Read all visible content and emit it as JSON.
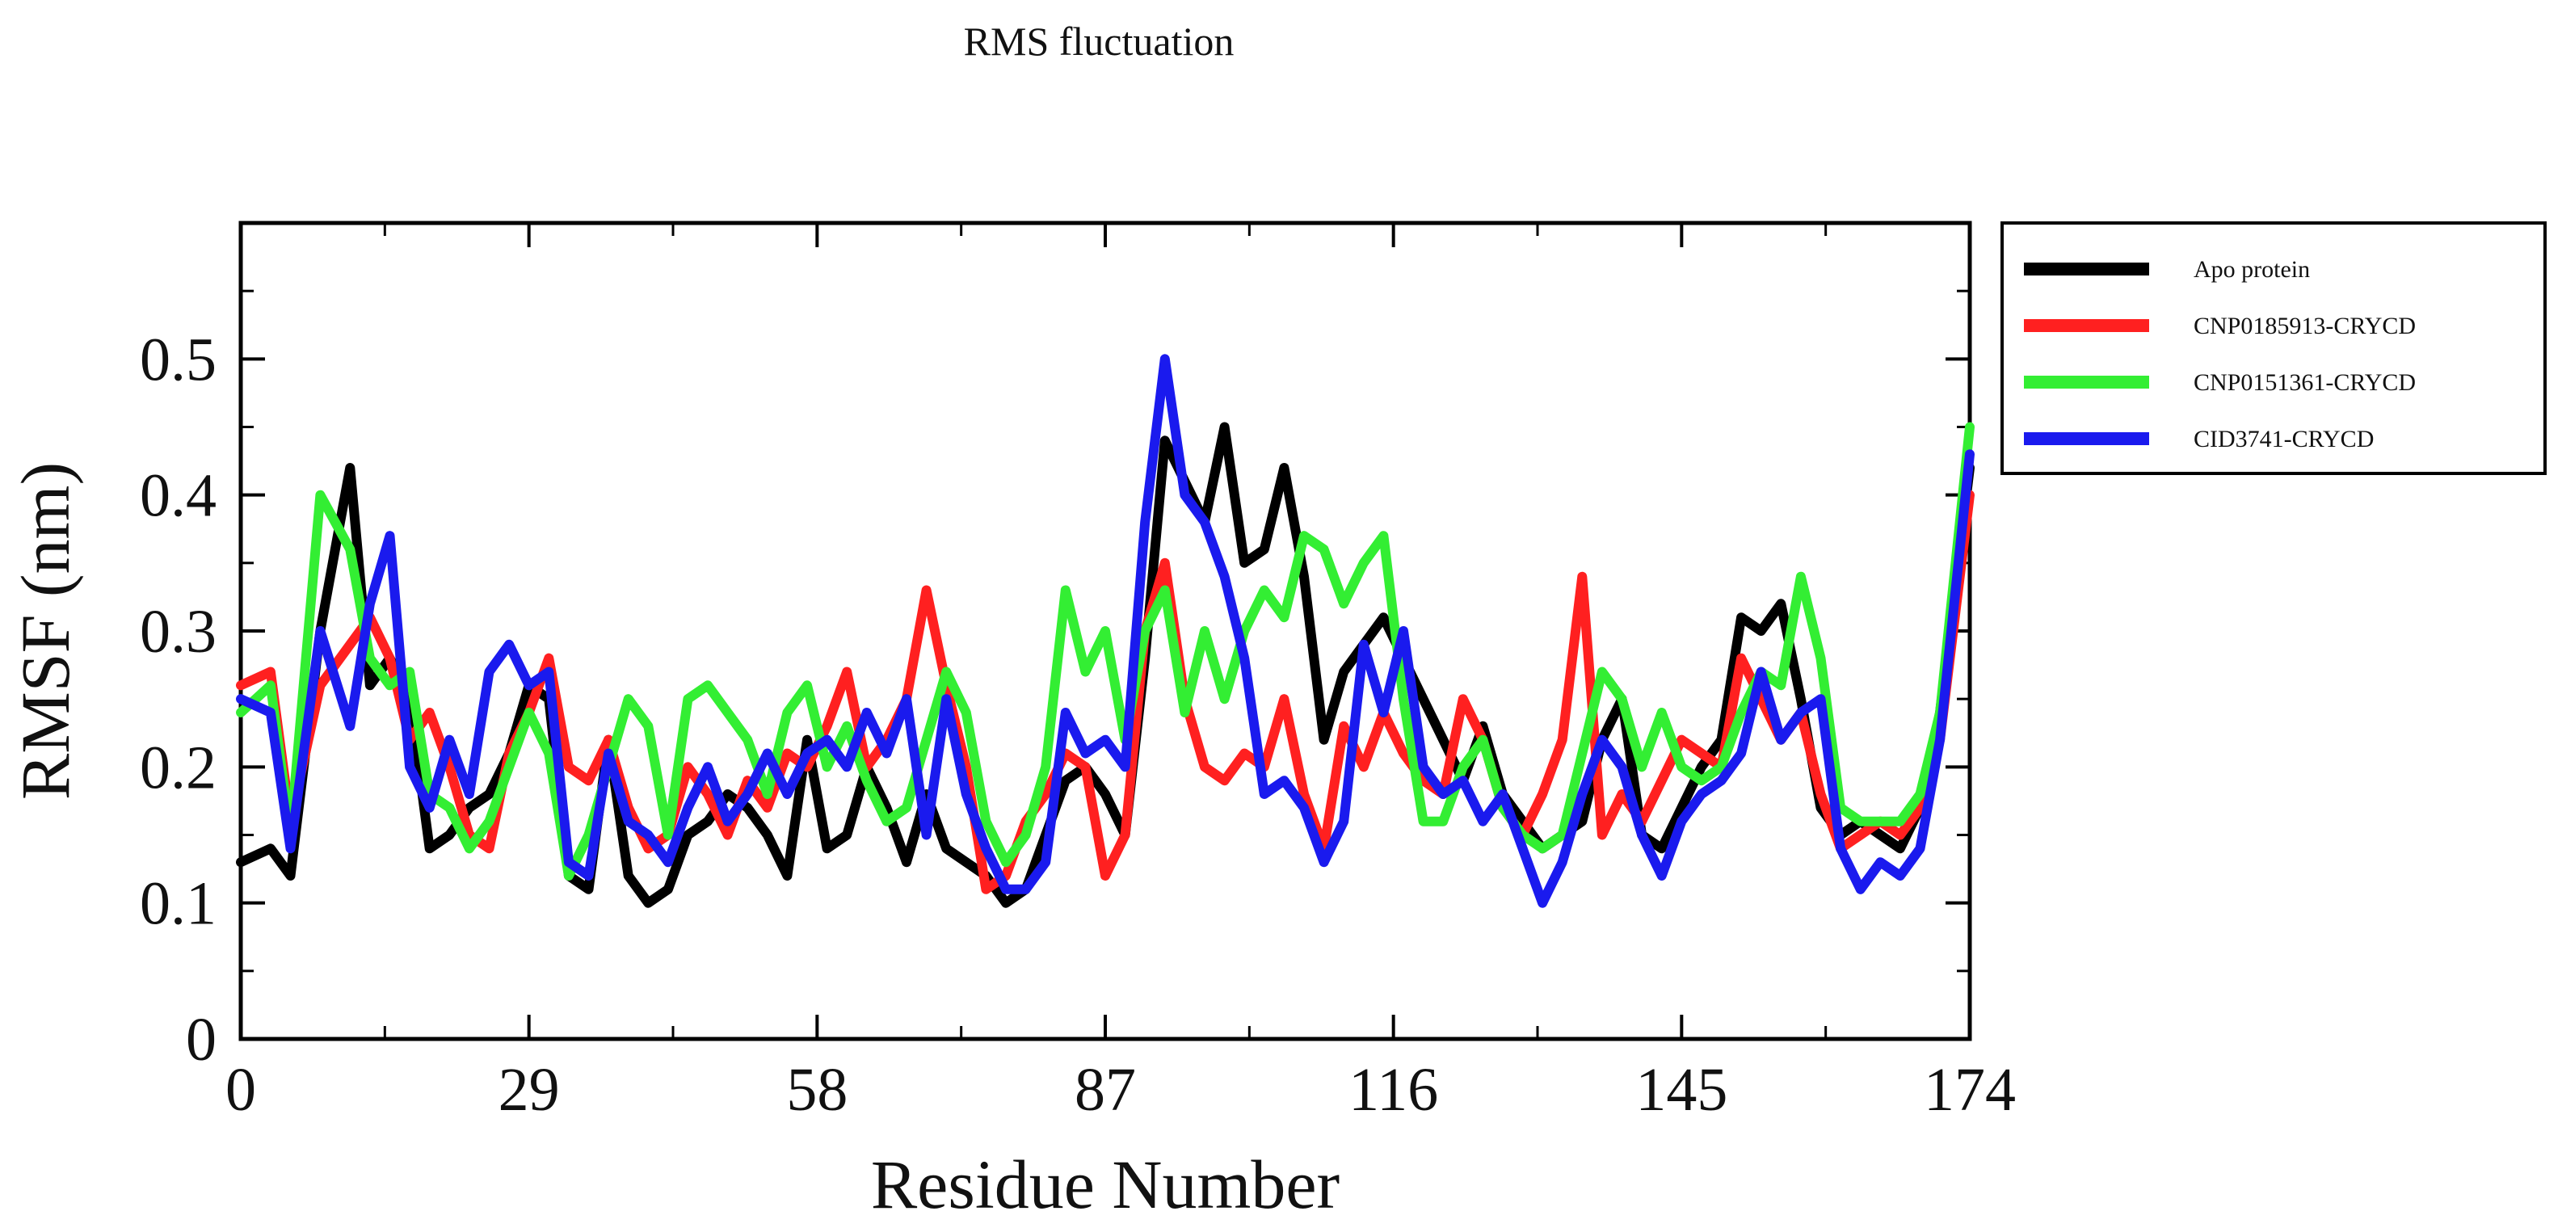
{
  "chart_data": {
    "type": "line",
    "title": "RMS fluctuation",
    "xlabel": "Residue Number",
    "ylabel": "RMSF (nm)",
    "xlim": [
      0,
      174
    ],
    "ylim": [
      0,
      0.6
    ],
    "x_ticks": [
      "0",
      "29",
      "58",
      "87",
      "116",
      "145",
      "174"
    ],
    "y_ticks": [
      "0",
      "0.1",
      "0.2",
      "0.3",
      "0.4",
      "0.5"
    ],
    "legend_position": "outside-right",
    "series": [
      {
        "name": "Apo protein",
        "color": "#000000",
        "x": [
          0,
          3,
          5,
          8,
          11,
          13,
          15,
          17,
          19,
          21,
          23,
          25,
          27,
          29,
          31,
          33,
          35,
          37,
          39,
          41,
          43,
          45,
          47,
          49,
          51,
          53,
          55,
          57,
          59,
          61,
          63,
          65,
          67,
          69,
          71,
          73,
          75,
          77,
          79,
          81,
          83,
          85,
          87,
          89,
          91,
          93,
          95,
          97,
          99,
          101,
          103,
          105,
          107,
          109,
          111,
          113,
          115,
          117,
          119,
          121,
          123,
          125,
          127,
          129,
          131,
          133,
          135,
          137,
          139,
          141,
          143,
          145,
          147,
          149,
          151,
          153,
          155,
          157,
          159,
          161,
          163,
          165,
          167,
          169,
          171,
          174
        ],
        "values": [
          0.13,
          0.14,
          0.12,
          0.3,
          0.42,
          0.26,
          0.28,
          0.25,
          0.14,
          0.15,
          0.17,
          0.18,
          0.21,
          0.26,
          0.25,
          0.12,
          0.11,
          0.22,
          0.12,
          0.1,
          0.11,
          0.15,
          0.16,
          0.18,
          0.17,
          0.15,
          0.12,
          0.22,
          0.14,
          0.15,
          0.2,
          0.17,
          0.13,
          0.18,
          0.14,
          0.13,
          0.12,
          0.1,
          0.11,
          0.15,
          0.19,
          0.2,
          0.18,
          0.15,
          0.28,
          0.44,
          0.41,
          0.38,
          0.45,
          0.35,
          0.36,
          0.42,
          0.34,
          0.22,
          0.27,
          0.29,
          0.31,
          0.28,
          0.25,
          0.22,
          0.19,
          0.23,
          0.18,
          0.16,
          0.14,
          0.15,
          0.16,
          0.22,
          0.25,
          0.15,
          0.14,
          0.17,
          0.2,
          0.22,
          0.31,
          0.3,
          0.32,
          0.25,
          0.17,
          0.15,
          0.16,
          0.15,
          0.14,
          0.17,
          0.24,
          0.42
        ]
      },
      {
        "name": "CNP0185913-CRYCD",
        "color": "#ff2020",
        "x": [
          0,
          3,
          5,
          8,
          11,
          13,
          15,
          17,
          19,
          21,
          23,
          25,
          27,
          29,
          31,
          33,
          35,
          37,
          39,
          41,
          43,
          45,
          47,
          49,
          51,
          53,
          55,
          57,
          59,
          61,
          63,
          65,
          67,
          69,
          71,
          73,
          75,
          77,
          79,
          81,
          83,
          85,
          87,
          89,
          91,
          93,
          95,
          97,
          99,
          101,
          103,
          105,
          107,
          109,
          111,
          113,
          115,
          117,
          119,
          121,
          123,
          125,
          127,
          129,
          131,
          133,
          135,
          137,
          139,
          141,
          143,
          145,
          147,
          149,
          151,
          153,
          155,
          157,
          159,
          161,
          163,
          165,
          167,
          169,
          171,
          174
        ],
        "values": [
          0.26,
          0.27,
          0.16,
          0.26,
          0.29,
          0.31,
          0.28,
          0.22,
          0.24,
          0.2,
          0.15,
          0.14,
          0.21,
          0.24,
          0.28,
          0.2,
          0.19,
          0.22,
          0.17,
          0.14,
          0.15,
          0.2,
          0.18,
          0.15,
          0.19,
          0.17,
          0.21,
          0.2,
          0.23,
          0.27,
          0.2,
          0.22,
          0.25,
          0.33,
          0.26,
          0.2,
          0.11,
          0.12,
          0.16,
          0.18,
          0.21,
          0.2,
          0.12,
          0.15,
          0.3,
          0.35,
          0.25,
          0.2,
          0.19,
          0.21,
          0.2,
          0.25,
          0.18,
          0.14,
          0.23,
          0.2,
          0.24,
          0.21,
          0.19,
          0.18,
          0.25,
          0.22,
          0.17,
          0.15,
          0.18,
          0.22,
          0.34,
          0.15,
          0.18,
          0.16,
          0.19,
          0.22,
          0.21,
          0.2,
          0.28,
          0.25,
          0.22,
          0.24,
          0.18,
          0.14,
          0.15,
          0.16,
          0.15,
          0.17,
          0.22,
          0.4
        ]
      },
      {
        "name": "CNP0151361-CRYCD",
        "color": "#33ee33",
        "x": [
          0,
          3,
          5,
          8,
          11,
          13,
          15,
          17,
          19,
          21,
          23,
          25,
          27,
          29,
          31,
          33,
          35,
          37,
          39,
          41,
          43,
          45,
          47,
          49,
          51,
          53,
          55,
          57,
          59,
          61,
          63,
          65,
          67,
          69,
          71,
          73,
          75,
          77,
          79,
          81,
          83,
          85,
          87,
          89,
          91,
          93,
          95,
          97,
          99,
          101,
          103,
          105,
          107,
          109,
          111,
          113,
          115,
          117,
          119,
          121,
          123,
          125,
          127,
          129,
          131,
          133,
          135,
          137,
          139,
          141,
          143,
          145,
          147,
          149,
          151,
          153,
          155,
          157,
          159,
          161,
          163,
          165,
          167,
          169,
          171,
          174
        ],
        "values": [
          0.24,
          0.26,
          0.15,
          0.4,
          0.36,
          0.28,
          0.26,
          0.27,
          0.18,
          0.17,
          0.14,
          0.16,
          0.2,
          0.24,
          0.21,
          0.12,
          0.15,
          0.2,
          0.25,
          0.23,
          0.15,
          0.25,
          0.26,
          0.24,
          0.22,
          0.18,
          0.24,
          0.26,
          0.2,
          0.23,
          0.19,
          0.16,
          0.17,
          0.22,
          0.27,
          0.24,
          0.16,
          0.13,
          0.15,
          0.2,
          0.33,
          0.27,
          0.3,
          0.22,
          0.3,
          0.33,
          0.24,
          0.3,
          0.25,
          0.3,
          0.33,
          0.31,
          0.37,
          0.36,
          0.32,
          0.35,
          0.37,
          0.25,
          0.16,
          0.16,
          0.2,
          0.22,
          0.17,
          0.15,
          0.14,
          0.15,
          0.21,
          0.27,
          0.25,
          0.2,
          0.24,
          0.2,
          0.19,
          0.2,
          0.24,
          0.27,
          0.26,
          0.34,
          0.28,
          0.17,
          0.16,
          0.16,
          0.16,
          0.18,
          0.24,
          0.45
        ]
      },
      {
        "name": "CID3741-CRYCD",
        "color": "#1a1aee",
        "x": [
          0,
          3,
          5,
          8,
          11,
          13,
          15,
          17,
          19,
          21,
          23,
          25,
          27,
          29,
          31,
          33,
          35,
          37,
          39,
          41,
          43,
          45,
          47,
          49,
          51,
          53,
          55,
          57,
          59,
          61,
          63,
          65,
          67,
          69,
          71,
          73,
          75,
          77,
          79,
          81,
          83,
          85,
          87,
          89,
          91,
          93,
          95,
          97,
          99,
          101,
          103,
          105,
          107,
          109,
          111,
          113,
          115,
          117,
          119,
          121,
          123,
          125,
          127,
          129,
          131,
          133,
          135,
          137,
          139,
          141,
          143,
          145,
          147,
          149,
          151,
          153,
          155,
          157,
          159,
          161,
          163,
          165,
          167,
          169,
          171,
          174
        ],
        "values": [
          0.25,
          0.24,
          0.14,
          0.3,
          0.23,
          0.32,
          0.37,
          0.2,
          0.17,
          0.22,
          0.18,
          0.27,
          0.29,
          0.26,
          0.27,
          0.13,
          0.12,
          0.21,
          0.16,
          0.15,
          0.13,
          0.17,
          0.2,
          0.16,
          0.18,
          0.21,
          0.18,
          0.21,
          0.22,
          0.2,
          0.24,
          0.21,
          0.25,
          0.15,
          0.25,
          0.18,
          0.14,
          0.11,
          0.11,
          0.13,
          0.24,
          0.21,
          0.22,
          0.2,
          0.38,
          0.5,
          0.4,
          0.38,
          0.34,
          0.28,
          0.18,
          0.19,
          0.17,
          0.13,
          0.16,
          0.29,
          0.24,
          0.3,
          0.2,
          0.18,
          0.19,
          0.16,
          0.18,
          0.14,
          0.1,
          0.13,
          0.18,
          0.22,
          0.2,
          0.15,
          0.12,
          0.16,
          0.18,
          0.19,
          0.21,
          0.27,
          0.22,
          0.24,
          0.25,
          0.14,
          0.11,
          0.13,
          0.12,
          0.14,
          0.22,
          0.43
        ]
      }
    ]
  }
}
